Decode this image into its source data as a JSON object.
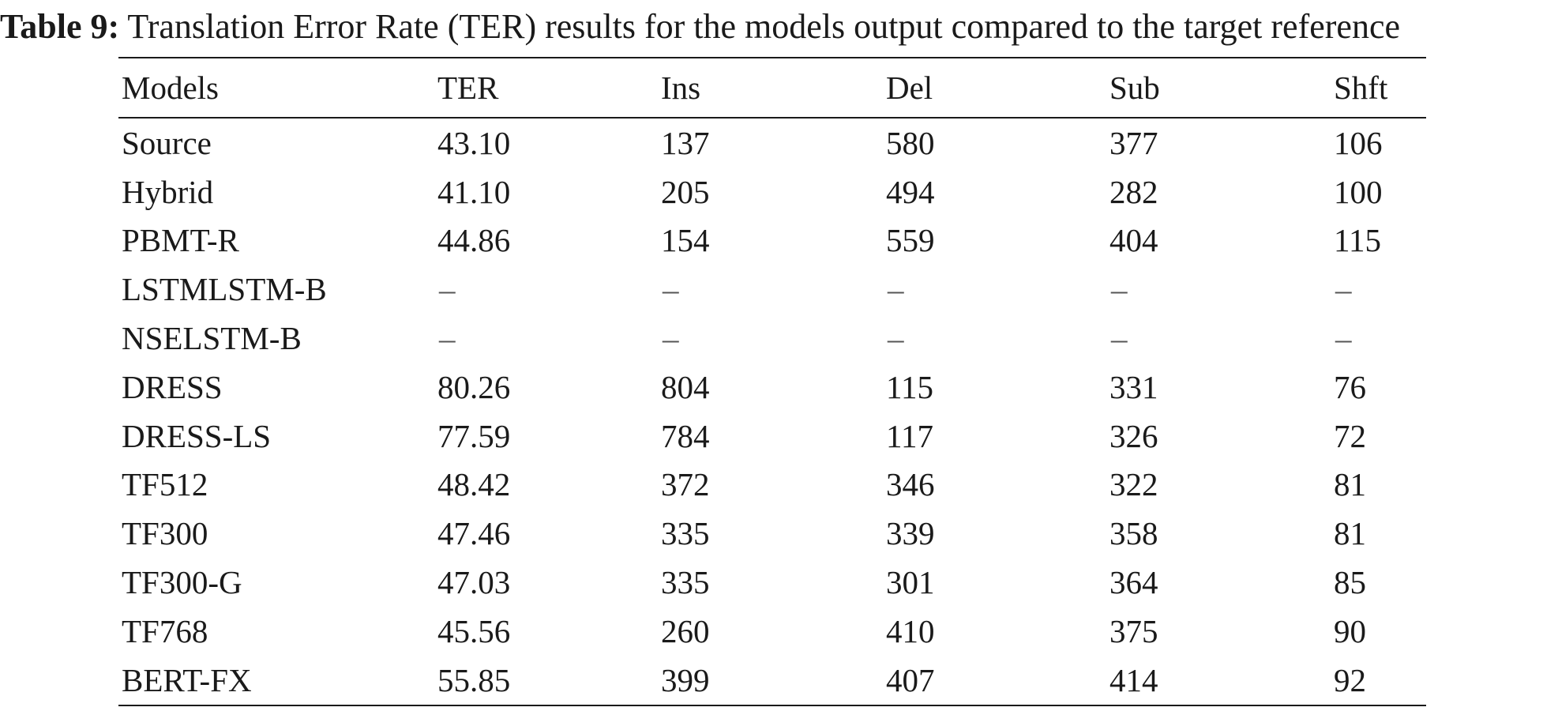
{
  "caption": {
    "label": "Table 9:",
    "text": " Translation Error Rate (TER) results for the models output compared to the target reference"
  },
  "table": {
    "headers": [
      "Models",
      "TER",
      "Ins",
      "Del",
      "Sub",
      "Shft"
    ],
    "rows": [
      [
        "Source",
        "43.10",
        "137",
        "580",
        "377",
        "106"
      ],
      [
        "Hybrid",
        "41.10",
        "205",
        "494",
        "282",
        "100"
      ],
      [
        "PBMT-R",
        "44.86",
        "154",
        "559",
        "404",
        "115"
      ],
      [
        "LSTMLSTM-B",
        "–",
        "–",
        "–",
        "–",
        "–"
      ],
      [
        "NSELSTM-B",
        "–",
        "–",
        "–",
        "–",
        "–"
      ],
      [
        "DRESS",
        "80.26",
        "804",
        "115",
        "331",
        "76"
      ],
      [
        "DRESS-LS",
        "77.59",
        "784",
        "117",
        "326",
        "72"
      ],
      [
        "TF512",
        "48.42",
        "372",
        "346",
        "322",
        "81"
      ],
      [
        "TF300",
        "47.46",
        "335",
        "339",
        "358",
        "81"
      ],
      [
        "TF300-G",
        "47.03",
        "335",
        "301",
        "364",
        "85"
      ],
      [
        "TF768",
        "45.56",
        "260",
        "410",
        "375",
        "90"
      ],
      [
        "BERT-FX",
        "55.85",
        "399",
        "407",
        "414",
        "92"
      ]
    ]
  }
}
